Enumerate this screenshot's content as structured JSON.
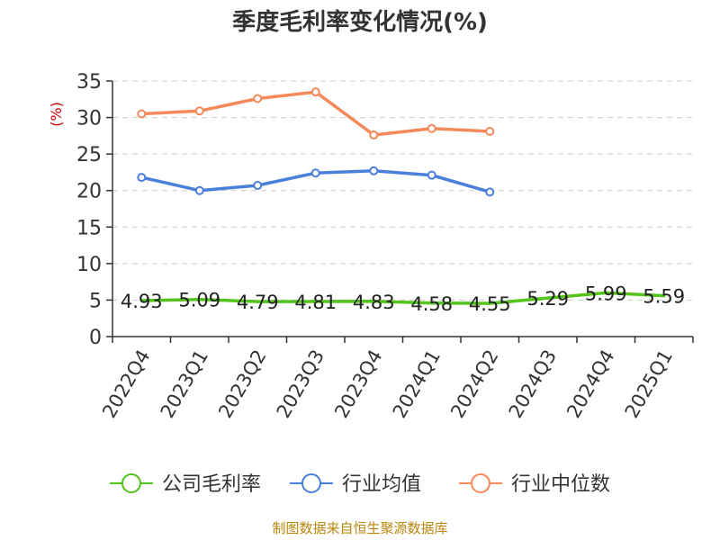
{
  "chart_data": {
    "type": "line",
    "title": "季度毛利率变化情况(%)",
    "ylabel": "(%)",
    "xlabel": "",
    "ylim": [
      0,
      35
    ],
    "yticks": [
      0,
      5,
      10,
      15,
      20,
      25,
      30,
      35
    ],
    "grid": true,
    "legend_position": "bottom",
    "categories": [
      "2022Q4",
      "2023Q1",
      "2023Q2",
      "2023Q3",
      "2023Q4",
      "2024Q1",
      "2024Q2",
      "2024Q3",
      "2024Q4",
      "2025Q1"
    ],
    "series": [
      {
        "name": "公司毛利率",
        "color": "#52c41a",
        "values": [
          4.93,
          5.09,
          4.79,
          4.81,
          4.83,
          4.58,
          4.55,
          5.29,
          5.99,
          5.59
        ],
        "labels": [
          "4.93",
          "5.09",
          "4.79",
          "4.81",
          "4.83",
          "4.58",
          "4.55",
          "5.29",
          "5.99",
          "5.59"
        ],
        "show_markers": false
      },
      {
        "name": "行业均值",
        "color": "#4a7fdb",
        "values": [
          21.8,
          20.0,
          20.7,
          22.4,
          22.7,
          22.1,
          19.8,
          null,
          null,
          null
        ],
        "show_markers": true
      },
      {
        "name": "行业中位数",
        "color": "#f5895a",
        "values": [
          30.5,
          30.9,
          32.6,
          33.5,
          27.6,
          28.5,
          28.1,
          null,
          null,
          null
        ],
        "show_markers": true
      }
    ]
  },
  "source": "制图数据来自恒生聚源数据库"
}
